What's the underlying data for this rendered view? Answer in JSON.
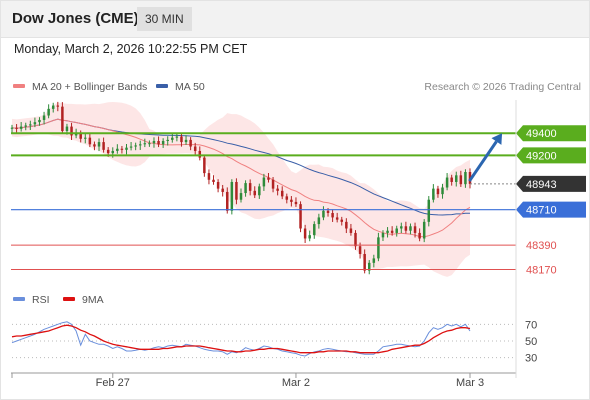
{
  "header": {
    "title": "Dow Jones (CME)",
    "interval": "30 MIN",
    "timestamp": "Monday, March 2, 2026 10:22:55 PM CET"
  },
  "legend": {
    "ma20_label": "MA 20 + Bollinger Bands",
    "ma50_label": "MA 50",
    "ma20_color": "#f08080",
    "ma50_color": "#3a5fa8",
    "credit": "Research © 2026 Trading Central"
  },
  "rsi_legend": {
    "rsi_label": "RSI",
    "ma9_label": "9MA",
    "rsi_color": "#6a8fdc",
    "ma9_color": "#dd1111"
  },
  "colors": {
    "up": "#2e8b3a",
    "down": "#b22222",
    "resistance": "#5aad1e",
    "support": "#e05050",
    "pivot": "#3a6fd8",
    "band_fill": "#fde3e3",
    "arrow": "#2b66b0"
  },
  "chart_data": [
    {
      "type": "candlestick",
      "ylim": [
        48030,
        49700
      ],
      "x_ticks": [
        {
          "label": "Feb 27",
          "index": 22
        },
        {
          "label": "Mar 2",
          "index": 62
        },
        {
          "label": "Mar 3",
          "index": 100
        }
      ],
      "levels": [
        {
          "value": 49400,
          "label": "49400",
          "kind": "resistance"
        },
        {
          "value": 49200,
          "label": "49200",
          "kind": "resistance"
        },
        {
          "value": 48943,
          "label": "48943",
          "kind": "current"
        },
        {
          "value": 48710,
          "label": "48710",
          "kind": "pivot"
        },
        {
          "value": 48390,
          "label": "48390",
          "kind": "support"
        },
        {
          "value": 48170,
          "label": "48170",
          "kind": "support"
        }
      ],
      "arrow": {
        "from": [
          99,
          48950
        ],
        "to": [
          107,
          49400
        ]
      },
      "closes": [
        49450,
        49440,
        49460,
        49470,
        49480,
        49500,
        49520,
        49560,
        49620,
        49650,
        49640,
        49420,
        49460,
        49380,
        49400,
        49350,
        49360,
        49300,
        49280,
        49320,
        49250,
        49220,
        49240,
        49260,
        49250,
        49270,
        49280,
        49290,
        49300,
        49310,
        49310,
        49330,
        49300,
        49330,
        49340,
        49360,
        49370,
        49320,
        49340,
        49280,
        49240,
        49180,
        49040,
        48980,
        48960,
        48900,
        48870,
        48700,
        48960,
        48800,
        48860,
        48950,
        48880,
        48840,
        48920,
        49000,
        48980,
        48900,
        48880,
        48830,
        48800,
        48780,
        48760,
        48540,
        48450,
        48480,
        48580,
        48640,
        48700,
        48680,
        48640,
        48620,
        48600,
        48540,
        48500,
        48380,
        48310,
        48160,
        48230,
        48270,
        48460,
        48500,
        48520,
        48500,
        48540,
        48560,
        48520,
        48560,
        48500,
        48450,
        48600,
        48800,
        48900,
        48850,
        48910,
        49000,
        48960,
        49020,
        48940,
        49050,
        48943
      ]
    },
    {
      "type": "line",
      "title": "RSI",
      "ylim": [
        20,
        80
      ],
      "y_ticks": [
        70,
        50,
        30
      ],
      "series": [
        {
          "name": "RSI",
          "values": [
            48,
            50,
            52,
            54,
            56,
            58,
            61,
            64,
            66,
            68,
            70,
            72,
            73,
            70,
            62,
            45,
            58,
            50,
            48,
            46,
            46,
            44,
            41,
            43,
            41,
            38,
            38,
            39,
            40,
            39,
            40,
            42,
            43,
            42,
            44,
            45,
            44,
            43,
            46,
            45,
            44,
            42,
            40,
            39,
            38,
            38,
            37,
            34,
            37,
            36,
            38,
            42,
            40,
            39,
            41,
            44,
            43,
            41,
            40,
            38,
            37,
            36,
            35,
            33,
            32,
            35,
            37,
            38,
            40,
            41,
            40,
            39,
            38,
            37,
            37,
            36,
            35,
            34,
            34,
            34,
            38,
            43,
            44,
            45,
            46,
            46,
            45,
            44,
            43,
            44,
            50,
            60,
            66,
            64,
            66,
            70,
            68,
            70,
            67,
            70,
            62
          ]
        },
        {
          "name": "9MA",
          "values": [
            55,
            56,
            56,
            57,
            58,
            59,
            60,
            61,
            62,
            64,
            66,
            68,
            69,
            68,
            66,
            63,
            61,
            58,
            56,
            53,
            50,
            48,
            46,
            45,
            44,
            43,
            42,
            41,
            40,
            40,
            40,
            40,
            40,
            41,
            41,
            42,
            43,
            43,
            44,
            44,
            44,
            44,
            43,
            42,
            41,
            40,
            39,
            38,
            38,
            37,
            37,
            38,
            38,
            39,
            40,
            40,
            41,
            41,
            41,
            40,
            39,
            38,
            37,
            36,
            36,
            36,
            36,
            37,
            37,
            38,
            38,
            38,
            38,
            38,
            37,
            37,
            36,
            36,
            36,
            36,
            36,
            37,
            38,
            40,
            41,
            42,
            43,
            44,
            45,
            45,
            47,
            50,
            54,
            57,
            60,
            62,
            63,
            65,
            66,
            66,
            65
          ]
        }
      ]
    }
  ]
}
